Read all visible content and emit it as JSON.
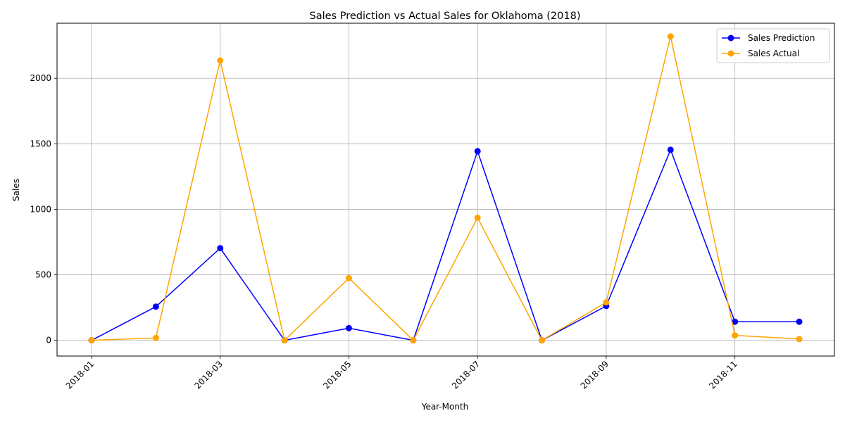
{
  "chart_data": {
    "type": "line",
    "title": "Sales Prediction vs Actual Sales for Oklahoma (2018)",
    "xlabel": "Year-Month",
    "ylabel": "Sales",
    "x": [
      "2018-01",
      "2018-02",
      "2018-03",
      "2018-04",
      "2018-05",
      "2018-06",
      "2018-07",
      "2018-08",
      "2018-09",
      "2018-10",
      "2018-11",
      "2018-12"
    ],
    "xticks": [
      "2018-01",
      "2018-03",
      "2018-05",
      "2018-07",
      "2018-09",
      "2018-11"
    ],
    "yticks": [
      0,
      500,
      1000,
      1500,
      2000
    ],
    "ylim": [
      -120,
      2420
    ],
    "grid": true,
    "legend_position": "top-right",
    "series": [
      {
        "name": "Sales Prediction",
        "color": "#0000ff",
        "values": [
          0,
          257,
          703,
          0,
          93,
          0,
          1443,
          0,
          262,
          1454,
          142,
          142
        ]
      },
      {
        "name": "Sales Actual",
        "color": "#ffa500",
        "values": [
          0,
          18,
          2136,
          0,
          475,
          0,
          935,
          0,
          290,
          2319,
          38,
          10
        ]
      }
    ]
  }
}
